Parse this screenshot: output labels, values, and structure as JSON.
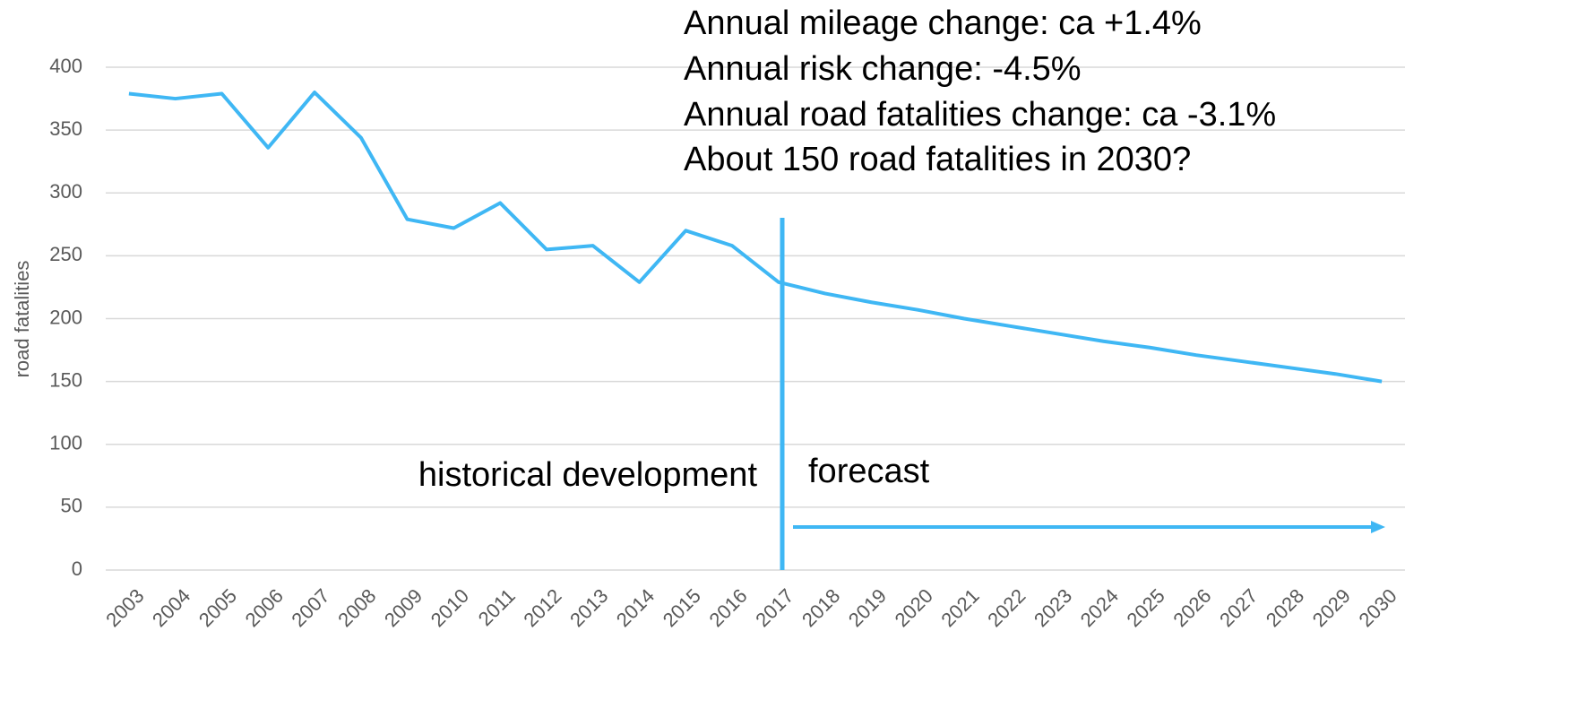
{
  "chart_data": {
    "type": "line",
    "y_label": "road fatalities",
    "categories": [
      "2003",
      "2004",
      "2005",
      "2006",
      "2007",
      "2008",
      "2009",
      "2010",
      "2011",
      "2012",
      "2013",
      "2014",
      "2015",
      "2016",
      "2017",
      "2018",
      "2019",
      "2020",
      "2021",
      "2022",
      "2023",
      "2024",
      "2025",
      "2026",
      "2027",
      "2028",
      "2029",
      "2030"
    ],
    "series": [
      {
        "color": "#3fb7f4",
        "values": [
          379,
          375,
          379,
          336,
          380,
          344,
          279,
          272,
          292,
          255,
          258,
          229,
          270,
          258,
          229,
          220,
          213,
          207,
          200,
          194,
          188,
          182,
          177,
          171,
          166,
          161,
          156,
          150
        ]
      }
    ],
    "ylim": [
      0,
      400
    ],
    "yticks": [
      0,
      50,
      100,
      150,
      200,
      250,
      300,
      350,
      400
    ],
    "grid": true,
    "annotations": [
      "Annual mileage change: ca +1.4%",
      "Annual risk change: -4.5%",
      "Annual road fatalities change: ca -3.1%",
      "About 150 road fatalities in 2030?"
    ],
    "labels": {
      "historical": "historical development",
      "forecast": "forecast"
    }
  }
}
